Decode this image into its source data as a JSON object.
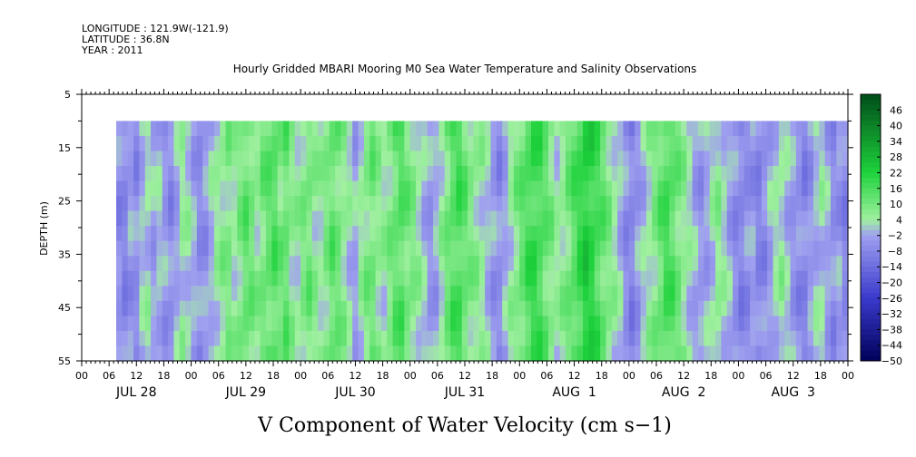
{
  "header": {
    "longitude": "LONGITUDE : 121.9W(-121.9)",
    "latitude": "LATITUDE : 36.8N",
    "year": "YEAR : 2011"
  },
  "chart_data": {
    "type": "heatmap",
    "title": "Hourly Gridded MBARI Mooring M0 Sea Water Temperature and Salinity Observations",
    "ylabel": "DEPTH (m)",
    "xlabel": "",
    "variable_label": "V Component of Water Velocity (cm s−1)",
    "y_ticks": [
      "5",
      "15",
      "25",
      "35",
      "45",
      "55"
    ],
    "ylim": [
      55,
      5
    ],
    "data_depth_range": [
      10,
      55
    ],
    "x_hour_ticks": [
      "00",
      "06",
      "12",
      "18",
      "00",
      "06",
      "12",
      "18",
      "00",
      "06",
      "12",
      "18",
      "00",
      "06",
      "12",
      "18",
      "00",
      "06",
      "12",
      "18",
      "00",
      "06",
      "12",
      "18",
      "00",
      "06",
      "12",
      "18",
      "00"
    ],
    "x_day_labels": [
      "JUL 28",
      "JUL 29",
      "JUL 30",
      "JUL 31",
      "AUG  1",
      "AUG  2",
      "AUG  3"
    ],
    "colorbar_ticks": [
      "46",
      "40",
      "34",
      "28",
      "22",
      "16",
      "10",
      "4",
      "−2",
      "−8",
      "−14",
      "−20",
      "−26",
      "−32",
      "−38",
      "−44",
      "−50"
    ],
    "colorbar_range": [
      -50,
      52
    ],
    "colors": {
      "strong_negative": "#00005a",
      "negative": "#3a3acd",
      "weak_negative": "#a0a0f0",
      "weak_positive": "#a0f0a0",
      "positive": "#1ed23c",
      "strong_positive": "#004d1a"
    },
    "column_means_cm_s": [
      -6,
      -8,
      -4,
      -6,
      0,
      2,
      -2,
      0,
      -4,
      -6,
      -2,
      4,
      2,
      -2,
      -6,
      -4,
      0,
      4,
      6,
      8,
      4,
      8,
      12,
      10,
      6,
      10,
      12,
      14,
      10,
      12,
      6,
      4,
      8,
      10,
      6,
      4,
      8,
      12,
      10,
      6,
      2,
      -2,
      4,
      8,
      10,
      6,
      4,
      8,
      12,
      14,
      10,
      8,
      4,
      0,
      -4,
      -2,
      4,
      10,
      14,
      16,
      12,
      8,
      6,
      4,
      0,
      -4,
      -6,
      -2,
      4,
      8,
      12,
      16,
      18,
      16,
      12,
      8,
      4,
      6,
      10,
      14,
      18,
      22,
      20,
      16,
      12,
      8,
      4,
      0,
      -6,
      -8,
      -4,
      0,
      4,
      8,
      12,
      16,
      14,
      10,
      6,
      2,
      -2,
      -4,
      -2,
      2,
      6,
      2,
      -2,
      -6,
      -8,
      -6,
      -4,
      -8,
      -6,
      -2,
      2,
      4,
      0,
      -4,
      -6,
      -8,
      -4,
      0,
      2,
      -2,
      -6,
      -4,
      -8
    ]
  }
}
